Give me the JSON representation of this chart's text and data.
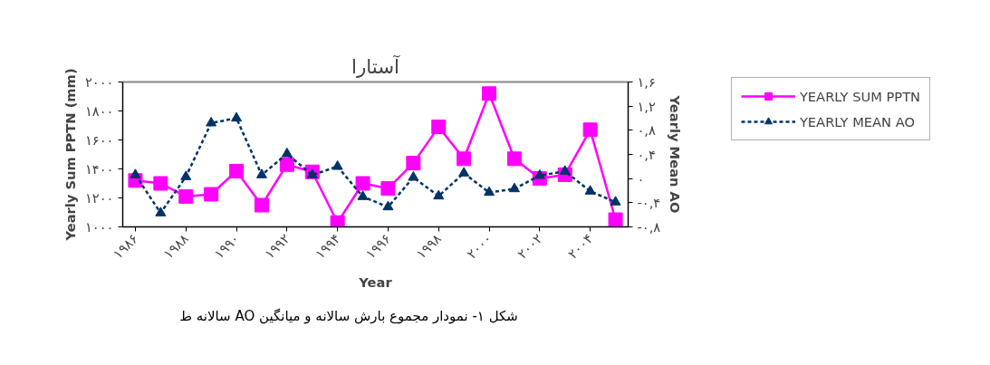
{
  "chart_data": {
    "type": "line",
    "title": "آستارا",
    "xlabel": "Year",
    "ylabel": "Yearly Sum PPTN (mm)",
    "y2label": "Yearly Mean AO",
    "x": [
      1986,
      1987,
      1988,
      1989,
      1990,
      1991,
      1992,
      1993,
      1994,
      1995,
      1996,
      1997,
      1998,
      1999,
      2000,
      2001,
      2002,
      2003,
      2004,
      2005
    ],
    "series": [
      {
        "name": "YEARLY SUM PPTN",
        "color": "#ff00ff",
        "marker": "square",
        "line_style": "solid",
        "values": [
          1320,
          1300,
          1210,
          1225,
          1385,
          1150,
          1430,
          1380,
          1030,
          1300,
          1265,
          1440,
          1690,
          1470,
          1920,
          1470,
          1335,
          1360,
          1670,
          1050
        ]
      },
      {
        "name": "YEARLY MEAN AO",
        "color": "#003366",
        "marker": "triangle",
        "line_style": "dashed",
        "axis": "y2",
        "values": [
          0.06,
          -0.57,
          0.03,
          0.92,
          1.0,
          0.06,
          0.41,
          0.06,
          0.2,
          -0.3,
          -0.47,
          0.02,
          -0.29,
          0.09,
          -0.23,
          -0.17,
          0.05,
          0.12,
          -0.21,
          -0.39
        ]
      }
    ],
    "xlim": [
      1985.5,
      2005.5
    ],
    "xticks": [
      {
        "value": 1986,
        "label": "۱۹۸۶"
      },
      {
        "value": 1988,
        "label": "۱۹۸۸"
      },
      {
        "value": 1990,
        "label": "۱۹۹۰"
      },
      {
        "value": 1992,
        "label": "۱۹۹۲"
      },
      {
        "value": 1994,
        "label": "۱۹۹۴"
      },
      {
        "value": 1996,
        "label": "۱۹۹۶"
      },
      {
        "value": 1998,
        "label": "۱۹۹۸"
      },
      {
        "value": 2000,
        "label": "۲۰۰۰"
      },
      {
        "value": 2002,
        "label": "۲۰۰۲"
      },
      {
        "value": 2004,
        "label": "۲۰۰۴"
      }
    ],
    "ylim": [
      1000,
      2000
    ],
    "yticks": [
      {
        "value": 1000,
        "label": "۱۰۰۰"
      },
      {
        "value": 1200,
        "label": "۱۲۰۰"
      },
      {
        "value": 1400,
        "label": "۱۴۰۰"
      },
      {
        "value": 1600,
        "label": "۱۶۰۰"
      },
      {
        "value": 1800,
        "label": "۱۸۰۰"
      },
      {
        "value": 2000,
        "label": "۲۰۰۰"
      }
    ],
    "y2lim": [
      -0.8,
      1.6
    ],
    "y2ticks": [
      {
        "value": -0.8,
        "label": "-۰,۸"
      },
      {
        "value": -0.4,
        "label": "-۰,۴"
      },
      {
        "value": 0,
        "label": "۰"
      },
      {
        "value": 0.4,
        "label": "۰,۴"
      },
      {
        "value": 0.8,
        "label": "۰,۸"
      },
      {
        "value": 1.2,
        "label": "۱,۲"
      },
      {
        "value": 1.6,
        "label": "۱,۶"
      }
    ],
    "legend": "right",
    "annotations": [
      "شکل ۱- نمودار مجموع بارش سالانه و میانگین AO سالانه ط"
    ]
  }
}
